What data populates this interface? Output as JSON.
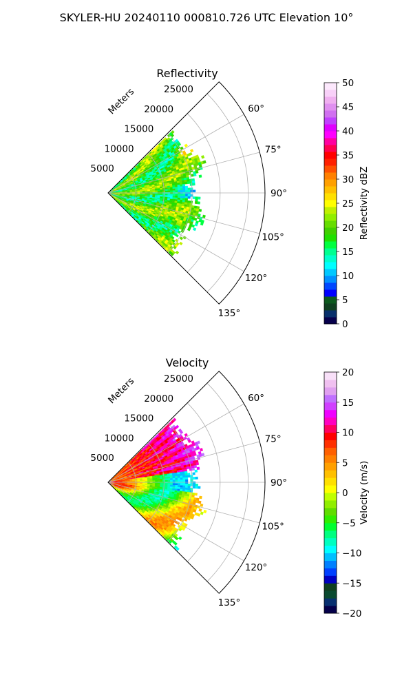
{
  "figure": {
    "suptitle": "SKYLER-HU  20240110  000810.726 UTC Elevation 10°"
  },
  "chart_data": [
    {
      "type": "heatmap",
      "plot": "polar sector (PPI)",
      "title": "Reflectivity",
      "radial_label": "Meters",
      "radial_ticks": [
        "5000",
        "10000",
        "15000",
        "20000",
        "25000"
      ],
      "azimuth_ticks": [
        "60°",
        "75°",
        "90°",
        "105°",
        "120°",
        "135°"
      ],
      "azimuth_range_deg": [
        45,
        135
      ],
      "range_m": [
        0,
        28000
      ],
      "data_extent_m": [
        0,
        18500
      ],
      "grid": true,
      "colorbar": {
        "label": "Reflectivity dBZ",
        "vmin": 0,
        "vmax": 50,
        "ticks": [
          "0",
          "5",
          "10",
          "15",
          "20",
          "25",
          "30",
          "35",
          "40",
          "45",
          "50"
        ],
        "levels": 50
      },
      "dominant_values": "mostly 15-25 dBZ (green), patches near 13 (cyan) and 27 (yellow)"
    },
    {
      "type": "heatmap",
      "plot": "polar sector (PPI)",
      "title": "Velocity",
      "radial_label": "Meters",
      "radial_ticks": [
        "5000",
        "10000",
        "15000",
        "20000",
        "25000"
      ],
      "azimuth_ticks": [
        "60°",
        "75°",
        "90°",
        "105°",
        "120°",
        "135°"
      ],
      "azimuth_range_deg": [
        45,
        135
      ],
      "range_m": [
        0,
        28000
      ],
      "data_extent_m": [
        0,
        18500
      ],
      "grid": true,
      "colorbar": {
        "label": "Velocity (m/s)",
        "vmin": -20,
        "vmax": 20,
        "ticks": [
          "−20",
          "−15",
          "−10",
          "−5",
          "0",
          "5",
          "10",
          "15",
          "20"
        ],
        "levels": 40
      },
      "dominant_values": "north side +5 to +15 m/s, band of -10 m/s near 90°, south side 0 to +10 m/s"
    }
  ],
  "colors": {
    "reflectivity_scale": [
      "#07004c",
      "#08306b",
      "#104020",
      "#0d5a1e",
      "#0000ff",
      "#0048ff",
      "#0090ff",
      "#00c8ff",
      "#00ffff",
      "#00ffcc",
      "#00ff90",
      "#00ff40",
      "#20e000",
      "#40d000",
      "#66dd00",
      "#90ee00",
      "#c0f000",
      "#ffff00",
      "#ffe000",
      "#ffc000",
      "#ffa000",
      "#ff8000",
      "#ff5000",
      "#ff2000",
      "#ff0000",
      "#ff0050",
      "#ff00a0",
      "#ff00ff",
      "#e000ff",
      "#c040ff",
      "#d070f0",
      "#e090f0",
      "#f0b0f0",
      "#f8d0f8",
      "#fce8fc"
    ],
    "velocity_scale": [
      "#05004a",
      "#083070",
      "#0a4a30",
      "#104020",
      "#0000c0",
      "#0040ff",
      "#0080ff",
      "#00c0ff",
      "#00ffff",
      "#00ffc0",
      "#00ff80",
      "#00ff30",
      "#30ee00",
      "#60dd00",
      "#90ee00",
      "#c0ff00",
      "#ffff00",
      "#ffe000",
      "#ffc000",
      "#ffa000",
      "#ff8000",
      "#ff6000",
      "#ff3000",
      "#ff0000",
      "#ff0060",
      "#ff00c0",
      "#f000ff",
      "#d040ff",
      "#c070ff",
      "#e0a0f0",
      "#f0c0f0",
      "#f8e0f8"
    ]
  }
}
